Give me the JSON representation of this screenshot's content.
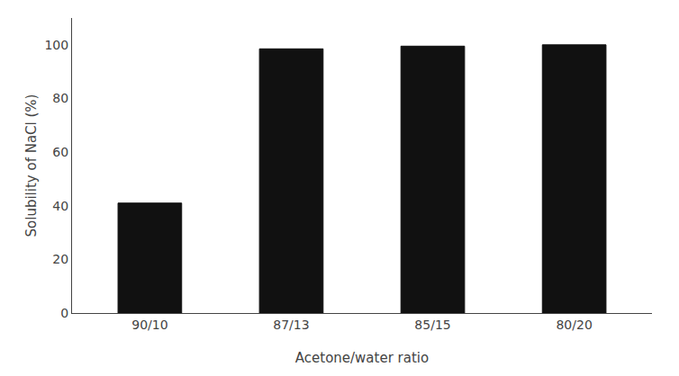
{
  "chart_data": {
    "type": "bar",
    "categories": [
      "90/10",
      "87/13",
      "85/15",
      "80/20"
    ],
    "values": [
      41,
      98.5,
      99.5,
      100
    ],
    "color": "#111111",
    "xlabel": "Acetone/water ratio",
    "ylabel": "Solubility of NaCl (%)",
    "ylim": [
      0,
      110
    ],
    "yticks": [
      0,
      20,
      40,
      60,
      80,
      100
    ],
    "grid": false
  }
}
